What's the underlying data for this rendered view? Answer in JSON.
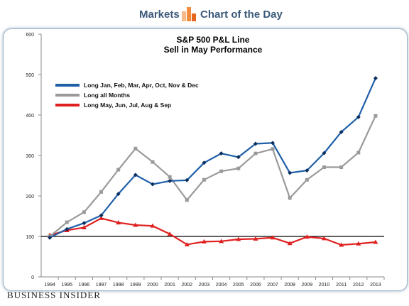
{
  "header": {
    "left_label": "Markets",
    "right_label": "Chart of the Day",
    "icon": "bar-chart-icon",
    "icon_colors": [
      "#f7b98a",
      "#f28c3c",
      "#e8671f"
    ]
  },
  "footer": {
    "brand": "Business Insider"
  },
  "chart_data": {
    "type": "line",
    "title": "S&P 500 P&L Line",
    "subtitle": "Sell in May Performance",
    "xlabel": "",
    "ylabel": "",
    "ylim": [
      0,
      600
    ],
    "yticks": [
      0,
      100,
      200,
      300,
      400,
      500,
      600
    ],
    "grid": false,
    "legend_position": "top-left",
    "reference_line": 100,
    "x": [
      "1994",
      "1995",
      "1996",
      "1997",
      "1998",
      "1999",
      "2000",
      "2001",
      "2002",
      "2003",
      "2004",
      "2005",
      "2006",
      "2007",
      "2008",
      "2009",
      "2010",
      "2011",
      "2012",
      "2013"
    ],
    "series": [
      {
        "name": "Long Jan, Feb, Mar, Apr, Oct, Nov & Dec",
        "color": "#1f5fa8",
        "marker": "diamond",
        "values": [
          97,
          118,
          133,
          152,
          205,
          252,
          229,
          237,
          239,
          282,
          305,
          296,
          329,
          331,
          257,
          263,
          306,
          358,
          395,
          491
        ]
      },
      {
        "name": "Long all Months",
        "color": "#9a9a9a",
        "marker": "square",
        "values": [
          100,
          135,
          160,
          210,
          265,
          317,
          284,
          247,
          190,
          240,
          261,
          268,
          305,
          316,
          195,
          240,
          271,
          271,
          307,
          398
        ]
      },
      {
        "name": "Long May, Jun, Jul, Aug & Sep",
        "color": "#e02020",
        "marker": "triangle",
        "values": [
          103,
          115,
          122,
          145,
          134,
          128,
          126,
          106,
          80,
          87,
          88,
          93,
          94,
          97,
          83,
          99,
          95,
          79,
          82,
          86
        ]
      }
    ]
  }
}
